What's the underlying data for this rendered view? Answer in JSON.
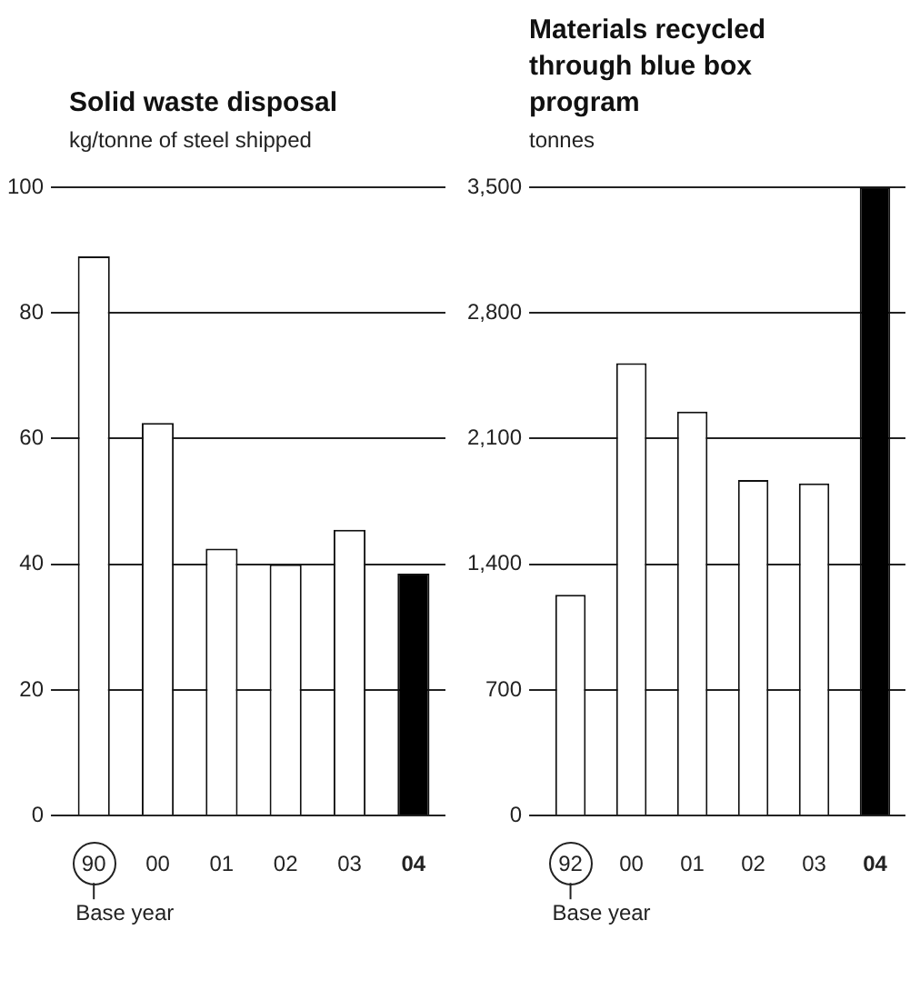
{
  "chart_data": [
    {
      "type": "bar",
      "title": "Solid waste disposal",
      "subtitle": "kg/tonne of steel shipped",
      "categories": [
        "90",
        "00",
        "01",
        "02",
        "03",
        "04"
      ],
      "values": [
        89,
        62.5,
        42.5,
        40,
        45.5,
        38.5
      ],
      "colors": [
        "#ffffff",
        "#ffffff",
        "#ffffff",
        "#ffffff",
        "#ffffff",
        "#000000"
      ],
      "ylim": [
        0,
        100
      ],
      "yticks": [
        0,
        20,
        40,
        60,
        80,
        100
      ],
      "grid": "y",
      "annotations": [
        "Base year"
      ]
    },
    {
      "type": "bar",
      "title": "Materials recycled through blue box program",
      "subtitle": "tonnes",
      "categories": [
        "92",
        "00",
        "01",
        "02",
        "03",
        "04"
      ],
      "values": [
        1230,
        2520,
        2250,
        1870,
        1850,
        3500
      ],
      "colors": [
        "#ffffff",
        "#ffffff",
        "#ffffff",
        "#ffffff",
        "#ffffff",
        "#000000"
      ],
      "ylim": [
        0,
        3500
      ],
      "yticks": [
        0,
        {
          "value": 700,
          "label": "700"
        },
        {
          "value": 1400,
          "label": "1,400"
        },
        {
          "value": 2100,
          "label": "2,100"
        },
        {
          "value": 2800,
          "label": "2,800"
        },
        {
          "value": 3500,
          "label": "3,500"
        }
      ],
      "grid": "y",
      "annotations": [
        "Base year"
      ]
    }
  ]
}
